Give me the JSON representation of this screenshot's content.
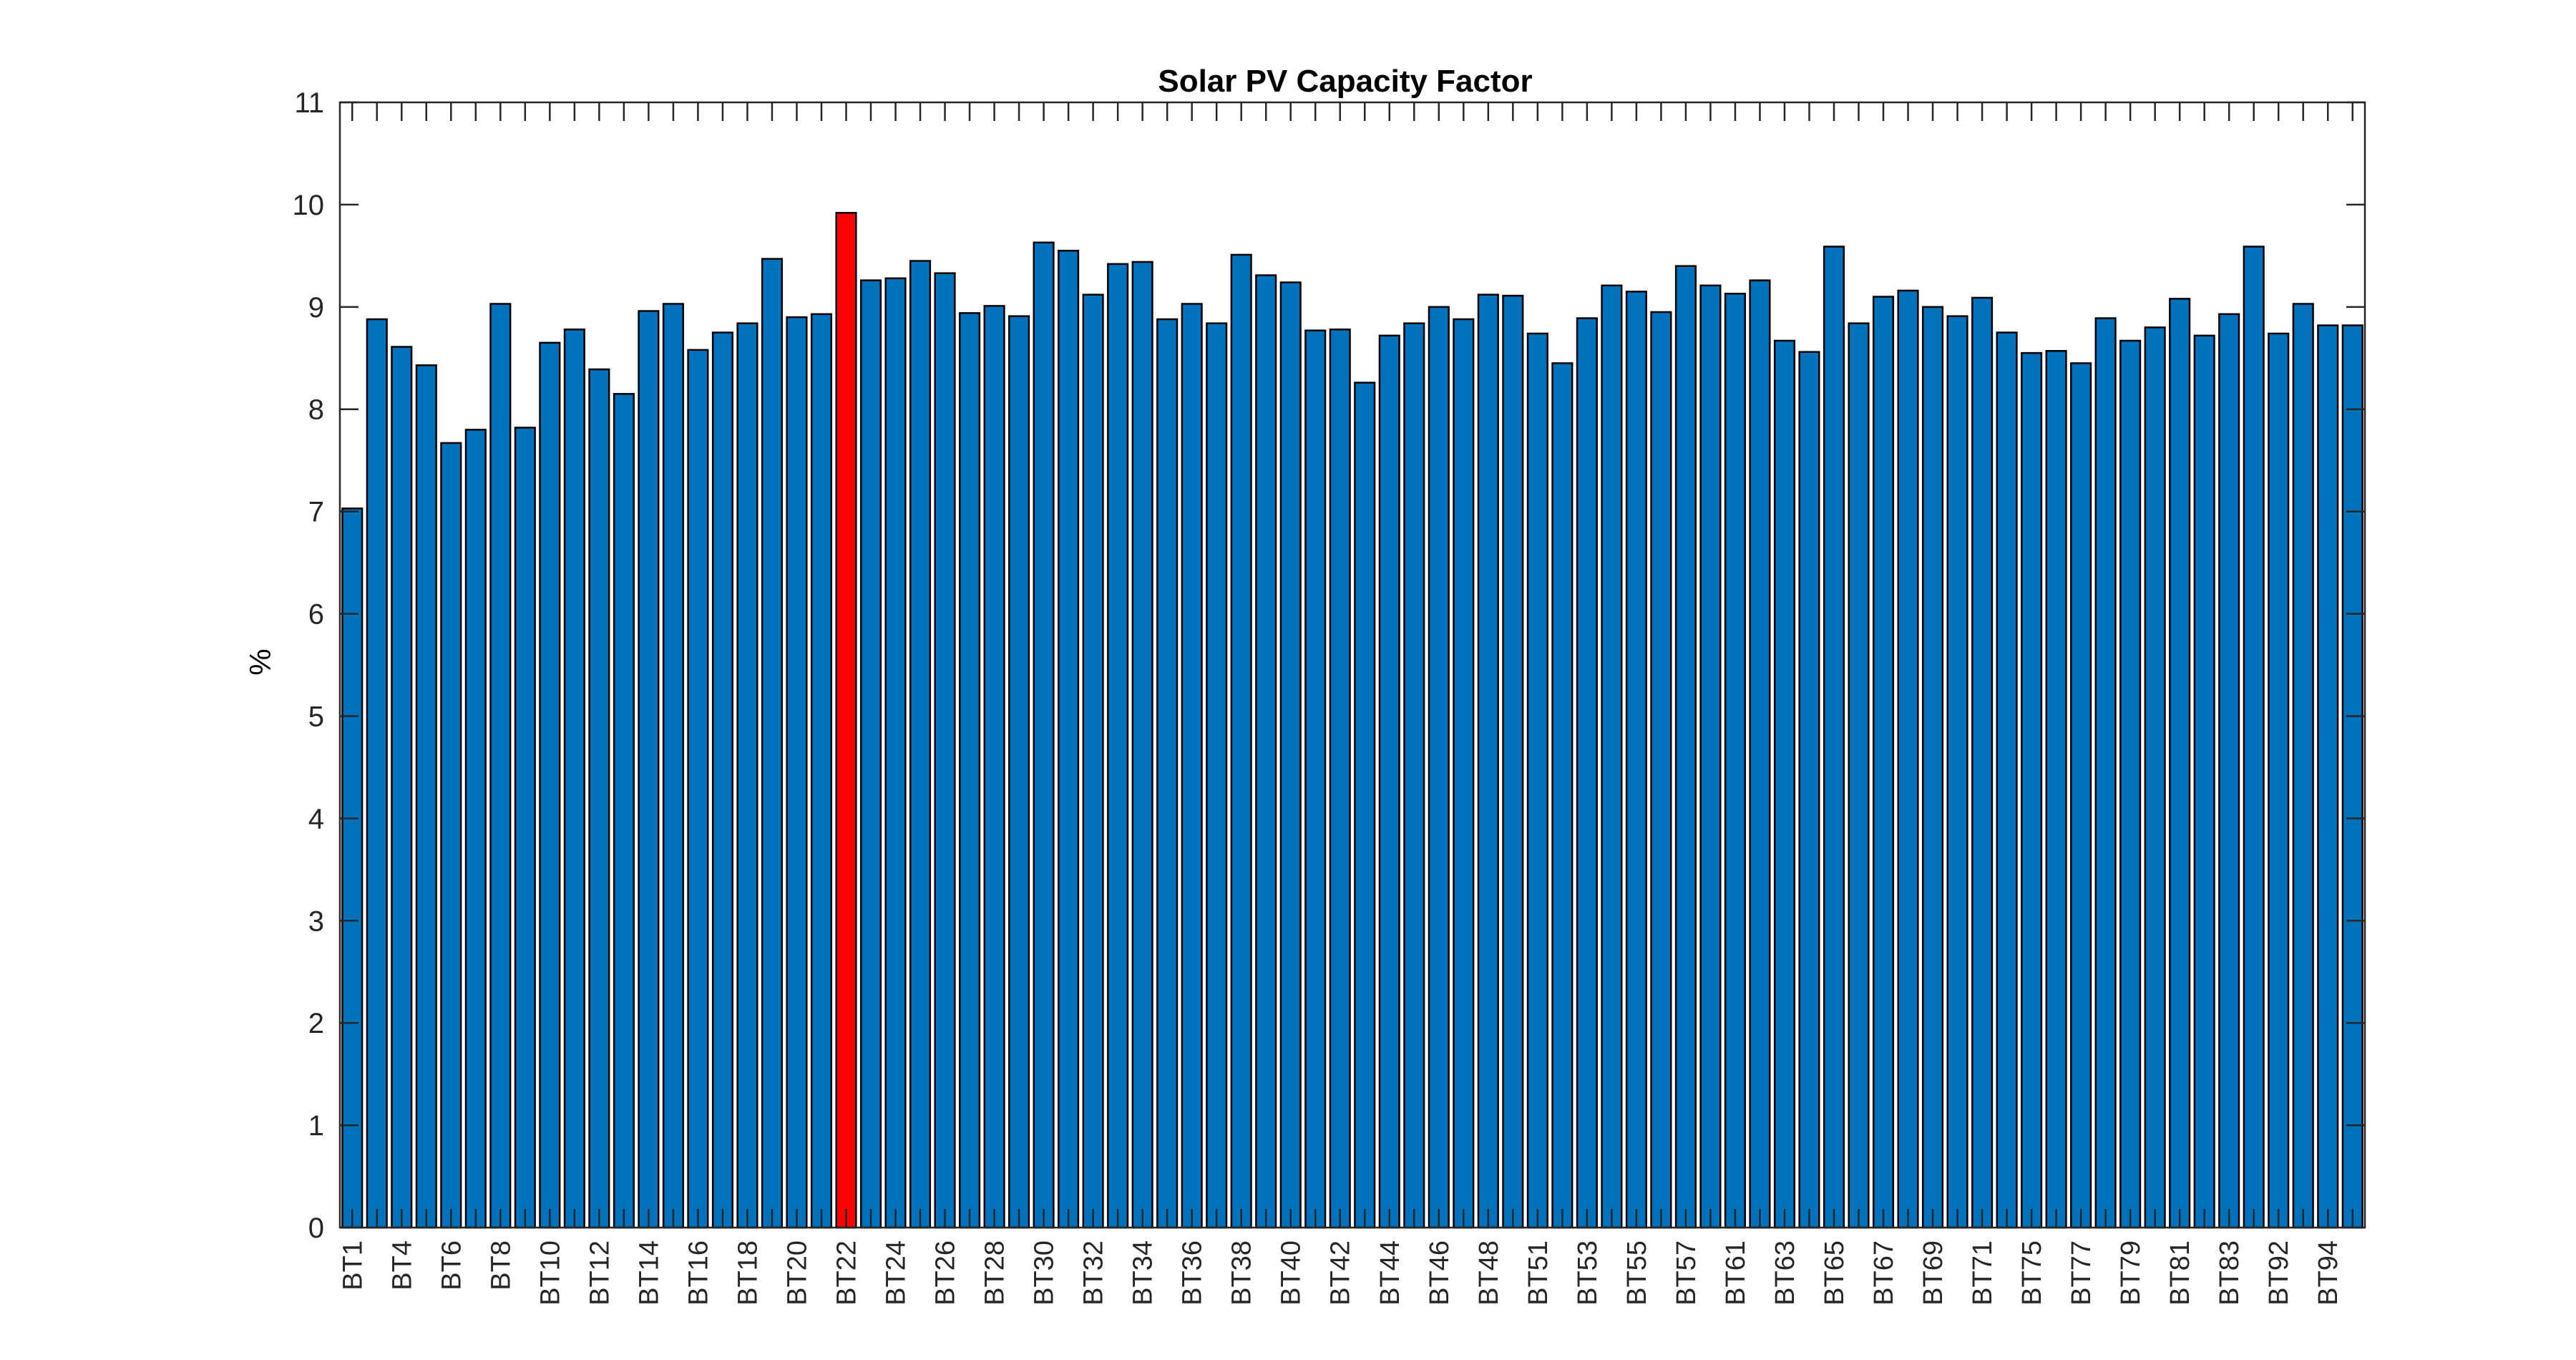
{
  "chart_data": {
    "type": "bar",
    "title": "Solar PV Capacity Factor",
    "xlabel": "",
    "ylabel": "%",
    "ylim": [
      0,
      11
    ],
    "yticks": [
      0,
      1,
      2,
      3,
      4,
      5,
      6,
      7,
      8,
      9,
      10,
      11
    ],
    "grid": false,
    "legend": "none",
    "colors": {
      "bar": "#0072BD",
      "highlight": "#FF0000",
      "edge": "#000000"
    },
    "highlight_index": 20,
    "tick_labels": [
      "BT1",
      "BT4",
      "BT6",
      "BT8",
      "BT10",
      "BT12",
      "BT14",
      "BT16",
      "BT18",
      "BT20",
      "BT22",
      "BT24",
      "BT26",
      "BT28",
      "BT30",
      "BT32",
      "BT34",
      "BT36",
      "BT38",
      "BT40",
      "BT42",
      "BT44",
      "BT46",
      "BT48",
      "BT51",
      "BT53",
      "BT55",
      "BT57",
      "BT61",
      "BT63",
      "BT65",
      "BT67",
      "BT69",
      "BT71",
      "BT75",
      "BT77",
      "BT79",
      "BT81",
      "BT83",
      "BT92",
      "BT94"
    ],
    "values": [
      7.03,
      8.88,
      8.61,
      8.43,
      7.67,
      7.8,
      9.03,
      7.82,
      8.65,
      8.78,
      8.39,
      8.15,
      8.96,
      9.03,
      8.58,
      8.75,
      8.84,
      9.47,
      8.9,
      8.93,
      9.92,
      9.26,
      9.28,
      9.45,
      9.33,
      8.94,
      9.01,
      8.91,
      9.63,
      9.55,
      9.12,
      9.42,
      9.44,
      8.88,
      9.03,
      8.84,
      9.51,
      9.31,
      9.24,
      8.77,
      8.78,
      8.26,
      8.72,
      8.84,
      9.0,
      8.88,
      9.12,
      9.11,
      8.74,
      8.45,
      8.89,
      9.21,
      9.15,
      8.95,
      9.4,
      9.21,
      9.13,
      9.26,
      8.67,
      8.56,
      9.59,
      8.84,
      9.1,
      9.16,
      9.0,
      8.91,
      9.09,
      8.75,
      8.55,
      8.57,
      8.45,
      8.89,
      8.67,
      8.8,
      9.08,
      8.72,
      8.93,
      9.59,
      8.74,
      9.03,
      8.82,
      8.82
    ]
  }
}
